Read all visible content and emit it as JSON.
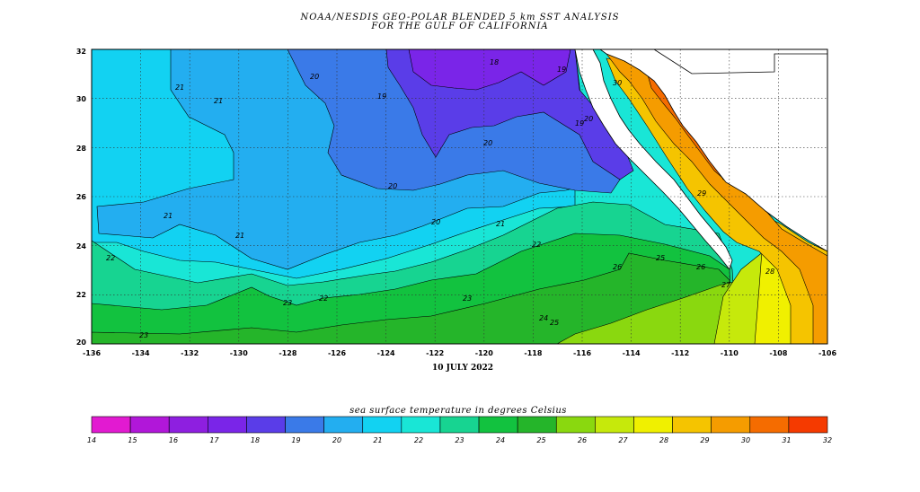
{
  "title": {
    "line1": "NOAA/NESDIS GEO-POLAR BLENDED 5 km SST ANALYSIS",
    "line2": "FOR THE GULF OF CALIFORNIA"
  },
  "date_label": "10 JULY 2022",
  "axes": {
    "x_ticks": [
      "-136",
      "-134",
      "-132",
      "-130",
      "-128",
      "-126",
      "-124",
      "-122",
      "-120",
      "-118",
      "-116",
      "-114",
      "-112",
      "-110",
      "-108",
      "-106"
    ],
    "y_ticks": [
      "32",
      "30",
      "28",
      "26",
      "24",
      "22",
      "20"
    ]
  },
  "contour_labels": [
    "21",
    "21",
    "21",
    "21",
    "22",
    "22",
    "23",
    "23",
    "23",
    "24",
    "25",
    "25",
    "26",
    "26",
    "27",
    "28",
    "29",
    "30",
    "20",
    "20",
    "20",
    "19",
    "19",
    "18",
    "19",
    "20",
    "20",
    "21",
    "22"
  ],
  "colorbar": {
    "title": "sea surface temperature in degrees Celsius",
    "ticks": [
      "14",
      "15",
      "16",
      "17",
      "18",
      "19",
      "20",
      "21",
      "22",
      "23",
      "24",
      "25",
      "26",
      "27",
      "28",
      "29",
      "30",
      "31",
      "32"
    ],
    "colors": [
      "#e21ad1",
      "#b117d9",
      "#8e1fe0",
      "#7a25e8",
      "#5a3de8",
      "#3a7ae8",
      "#23aef0",
      "#12d2f2",
      "#19e6d6",
      "#17d491",
      "#12c23f",
      "#25b52a",
      "#8ad80f",
      "#c6e90b",
      "#f0f000",
      "#f5c400",
      "#f59c00",
      "#f56c00",
      "#f53a00"
    ]
  },
  "colors": {
    "land": "#ffffff",
    "grid": "#333333",
    "frame": "#000000"
  }
}
